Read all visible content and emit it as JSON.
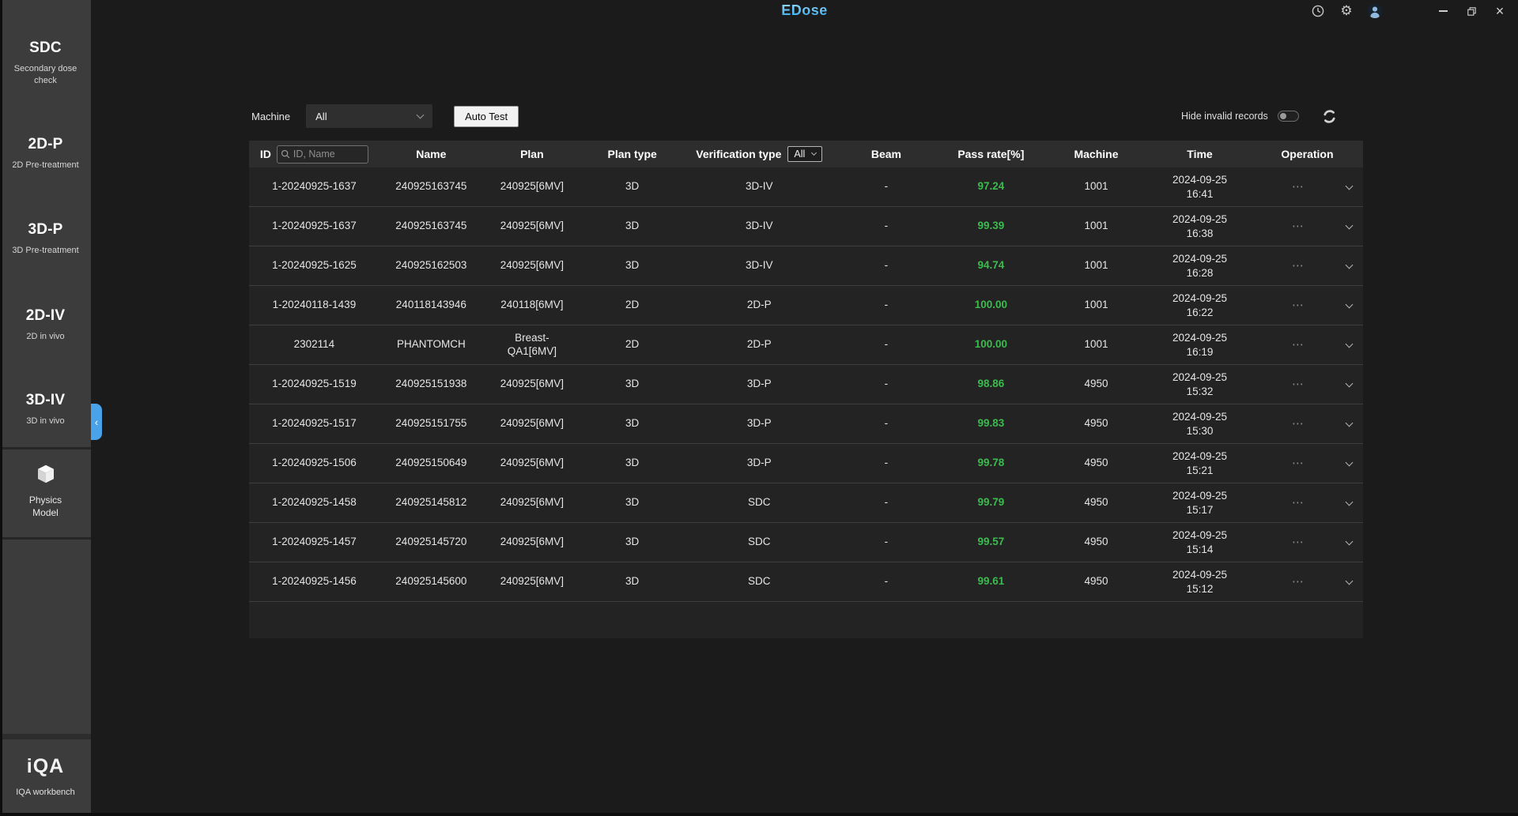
{
  "titlebar": {
    "logo": "EDose",
    "gear_glyph": "⚙",
    "close_glyph": "×"
  },
  "sidebar": {
    "items": [
      {
        "label": "SDC",
        "sublabel": "Secondary dose check"
      },
      {
        "label": "2D-P",
        "sublabel": "2D Pre-treatment"
      },
      {
        "label": "3D-P",
        "sublabel": "3D Pre-treatment"
      },
      {
        "label": "2D-IV",
        "sublabel": "2D in vivo"
      },
      {
        "label": "3D-IV",
        "sublabel": "3D in vivo"
      }
    ],
    "collapse_arrow": "‹",
    "physics": {
      "line1": "Physics",
      "line2": "Model"
    },
    "workbench": {
      "logo": "iQA",
      "label": "IQA workbench"
    }
  },
  "toolbar": {
    "machine_label": "Machine",
    "machine_value": "All",
    "auto_test_label": "Auto Test",
    "hide_invalid_label": "Hide invalid records"
  },
  "table": {
    "columns": {
      "id": "ID",
      "name": "Name",
      "plan": "Plan",
      "plan_type": "Plan type",
      "verification_type": "Verification type",
      "beam": "Beam",
      "pass_rate": "Pass rate[%]",
      "machine": "Machine",
      "time": "Time",
      "operation": "Operation"
    },
    "search_placeholder": "ID, Name",
    "verification_filter_value": "All",
    "op_dots_glyph": "⋯",
    "rows": [
      {
        "id": "1-20240925-1637",
        "name": "240925163745",
        "plan": "240925[6MV]",
        "plan_type": "3D",
        "verification_type": "3D-IV",
        "beam": "-",
        "pass_rate": "97.24",
        "machine": "1001",
        "date": "2024-09-25",
        "time": "16:41"
      },
      {
        "id": "1-20240925-1637",
        "name": "240925163745",
        "plan": "240925[6MV]",
        "plan_type": "3D",
        "verification_type": "3D-IV",
        "beam": "-",
        "pass_rate": "99.39",
        "machine": "1001",
        "date": "2024-09-25",
        "time": "16:38"
      },
      {
        "id": "1-20240925-1625",
        "name": "240925162503",
        "plan": "240925[6MV]",
        "plan_type": "3D",
        "verification_type": "3D-IV",
        "beam": "-",
        "pass_rate": "94.74",
        "machine": "1001",
        "date": "2024-09-25",
        "time": "16:28"
      },
      {
        "id": "1-20240118-1439",
        "name": "240118143946",
        "plan": "240118[6MV]",
        "plan_type": "2D",
        "verification_type": "2D-P",
        "beam": "-",
        "pass_rate": "100.00",
        "machine": "1001",
        "date": "2024-09-25",
        "time": "16:22"
      },
      {
        "id": "2302114",
        "name": "PHANTOMCH",
        "plan": "Breast-\nQA1[6MV]",
        "plan_type": "2D",
        "verification_type": "2D-P",
        "beam": "-",
        "pass_rate": "100.00",
        "machine": "1001",
        "date": "2024-09-25",
        "time": "16:19"
      },
      {
        "id": "1-20240925-1519",
        "name": "240925151938",
        "plan": "240925[6MV]",
        "plan_type": "3D",
        "verification_type": "3D-P",
        "beam": "-",
        "pass_rate": "98.86",
        "machine": "4950",
        "date": "2024-09-25",
        "time": "15:32"
      },
      {
        "id": "1-20240925-1517",
        "name": "240925151755",
        "plan": "240925[6MV]",
        "plan_type": "3D",
        "verification_type": "3D-P",
        "beam": "-",
        "pass_rate": "99.83",
        "machine": "4950",
        "date": "2024-09-25",
        "time": "15:30"
      },
      {
        "id": "1-20240925-1506",
        "name": "240925150649",
        "plan": "240925[6MV]",
        "plan_type": "3D",
        "verification_type": "3D-P",
        "beam": "-",
        "pass_rate": "99.78",
        "machine": "4950",
        "date": "2024-09-25",
        "time": "15:21"
      },
      {
        "id": "1-20240925-1458",
        "name": "240925145812",
        "plan": "240925[6MV]",
        "plan_type": "3D",
        "verification_type": "SDC",
        "beam": "-",
        "pass_rate": "99.79",
        "machine": "4950",
        "date": "2024-09-25",
        "time": "15:17"
      },
      {
        "id": "1-20240925-1457",
        "name": "240925145720",
        "plan": "240925[6MV]",
        "plan_type": "3D",
        "verification_type": "SDC",
        "beam": "-",
        "pass_rate": "99.57",
        "machine": "4950",
        "date": "2024-09-25",
        "time": "15:14"
      },
      {
        "id": "1-20240925-1456",
        "name": "240925145600",
        "plan": "240925[6MV]",
        "plan_type": "3D",
        "verification_type": "SDC",
        "beam": "-",
        "pass_rate": "99.61",
        "machine": "4950",
        "date": "2024-09-25",
        "time": "15:12"
      }
    ]
  },
  "colors": {
    "pass_green": "#3cbb4e",
    "accent_blue": "#4aa3e8",
    "logo_gradient_start": "#9ad8f8",
    "logo_gradient_end": "#2aa7ee"
  }
}
